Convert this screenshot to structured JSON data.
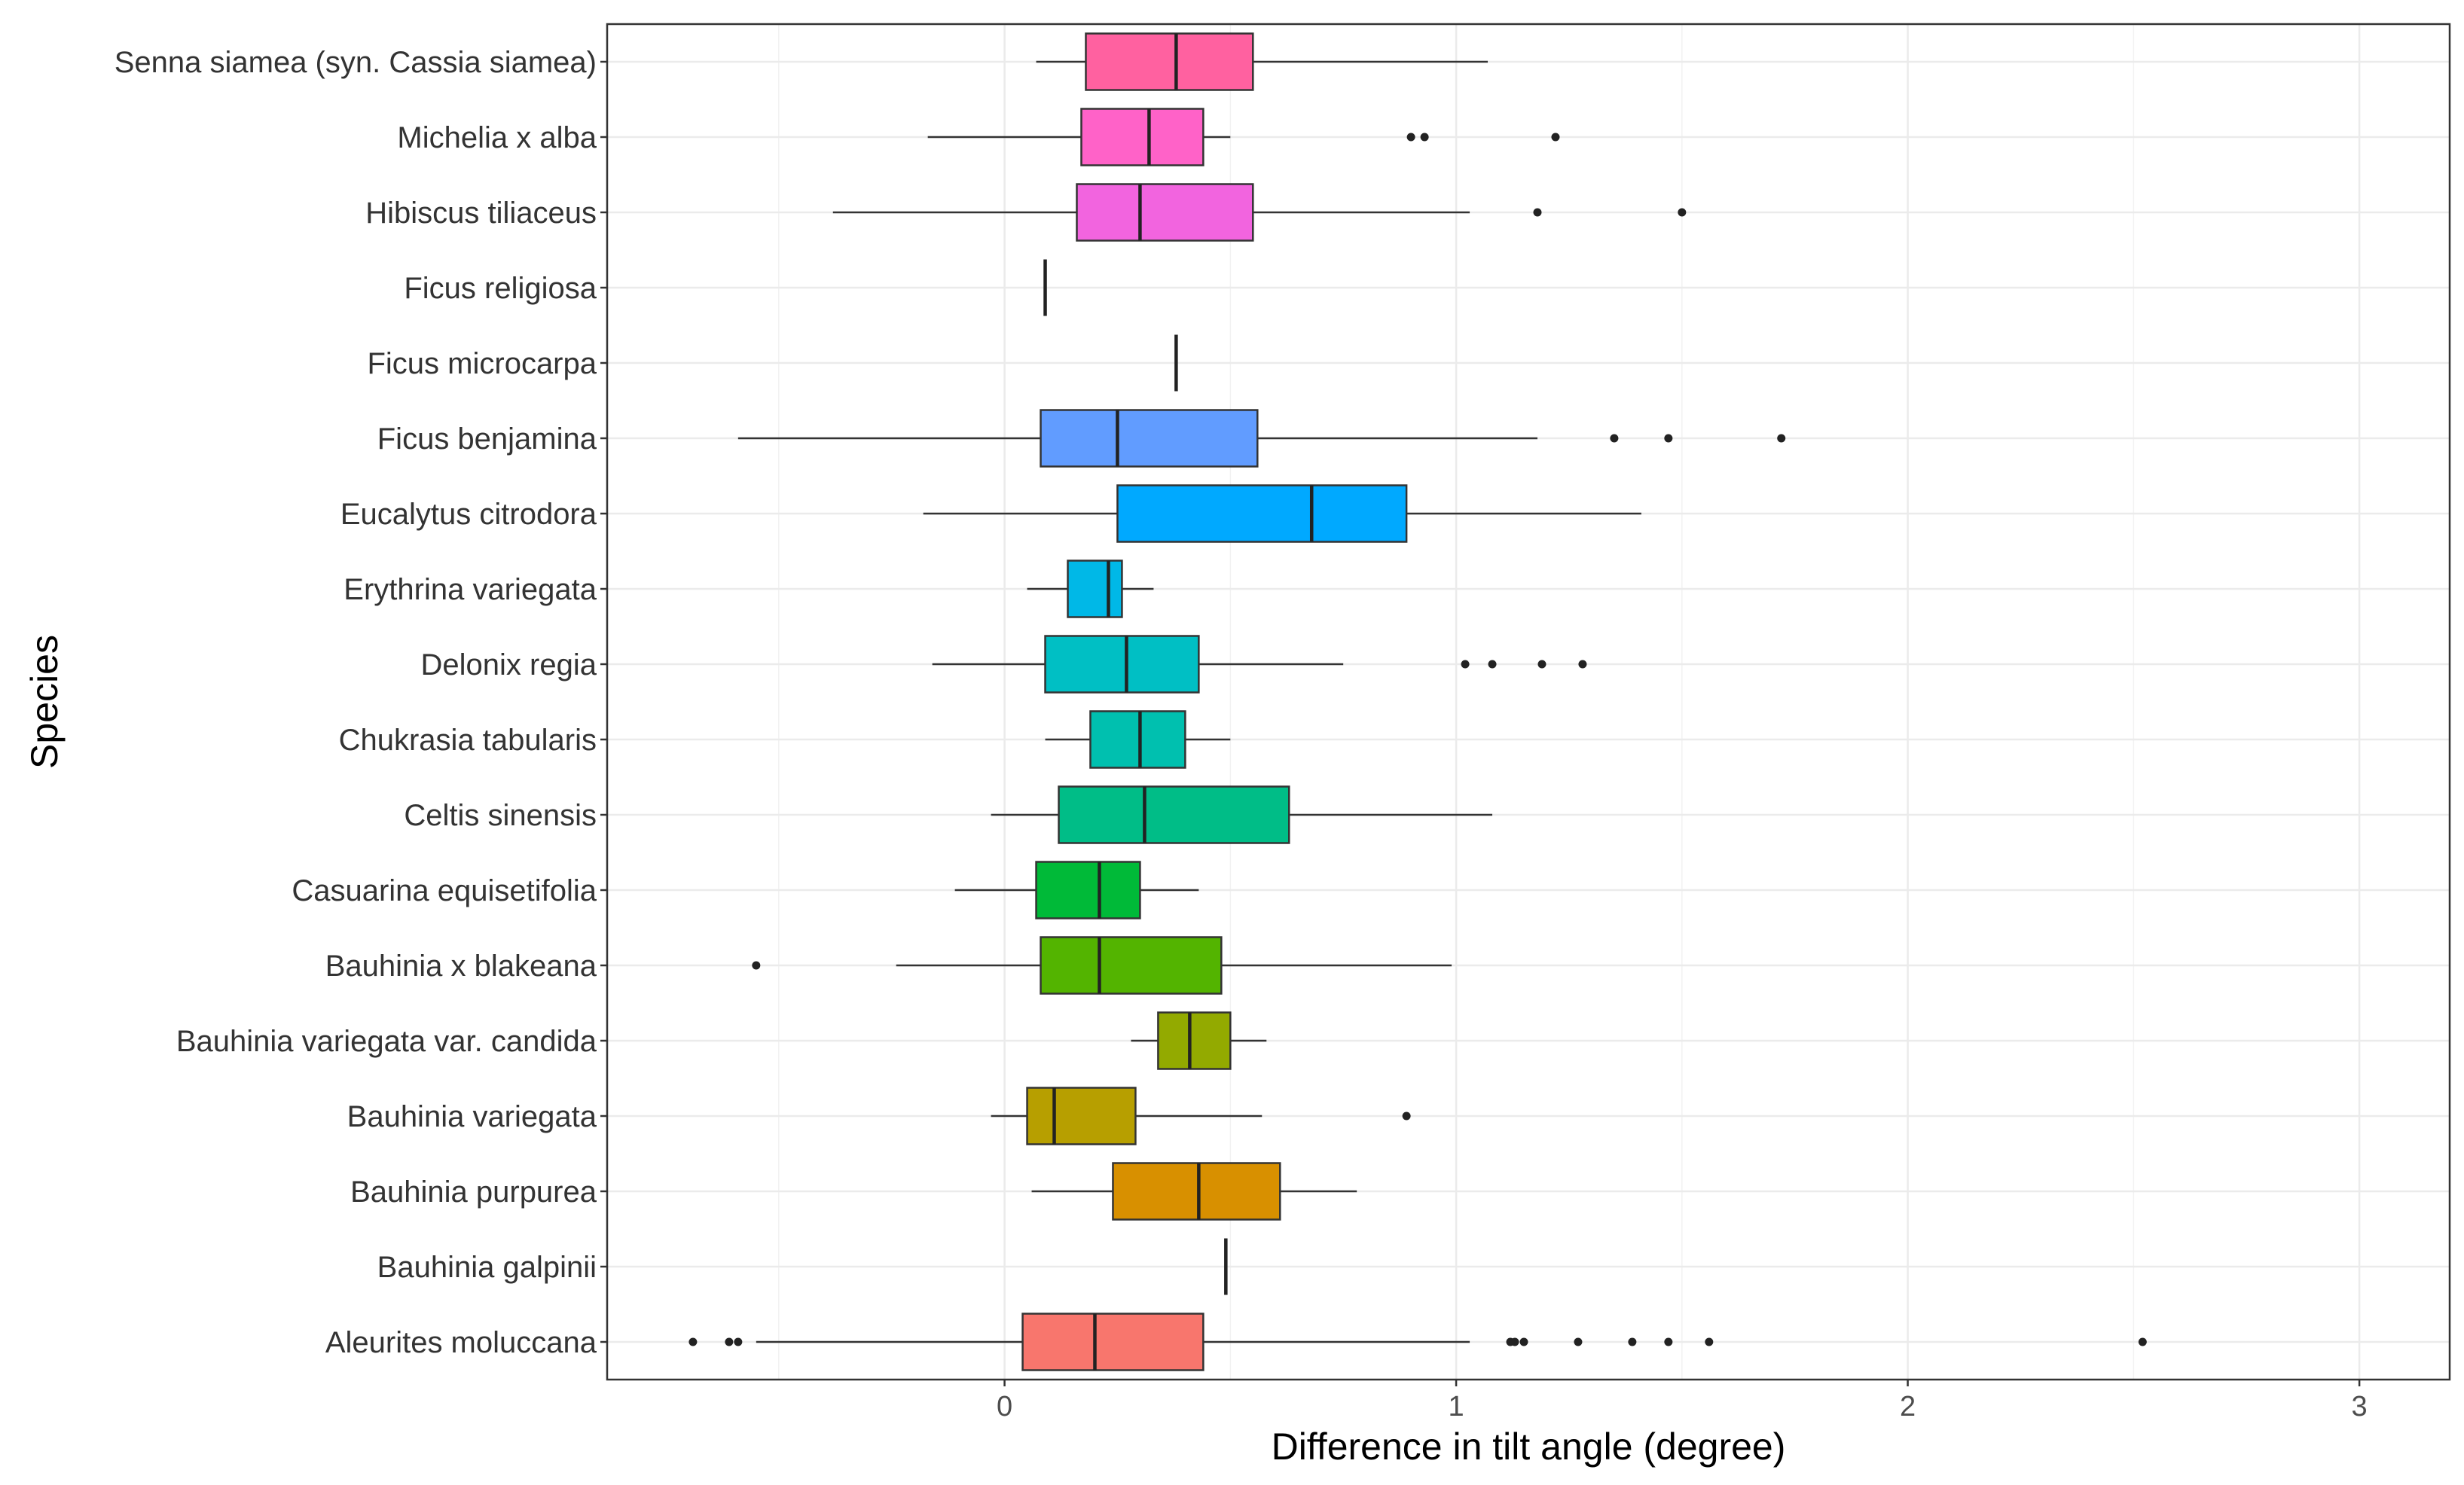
{
  "chart_data": {
    "type": "boxplot",
    "title": "",
    "xlabel": "Difference in tilt angle (degree)",
    "ylabel": "Species",
    "xlim": [
      -0.88,
      3.2
    ],
    "xticks": [
      0,
      1,
      2,
      3
    ],
    "grid": true,
    "legend": "none",
    "categories": [
      "Senna siamea (syn. Cassia siamea)",
      "Michelia x alba",
      "Hibiscus tiliaceus",
      "Ficus religiosa",
      "Ficus microcarpa",
      "Ficus benjamina",
      "Eucalytus citrodora",
      "Erythrina variegata",
      "Delonix regia",
      "Chukrasia tabularis",
      "Celtis sinensis",
      "Casuarina equisetifolia",
      "Bauhinia x blakeana",
      "Bauhinia variegata var. candida",
      "Bauhinia variegata",
      "Bauhinia purpurea",
      "Bauhinia galpinii",
      "Aleurites moluccana"
    ],
    "boxes": [
      {
        "species": "Senna siamea (syn. Cassia siamea)",
        "min": 0.07,
        "q1": 0.18,
        "median": 0.38,
        "q3": 0.55,
        "max": 1.07,
        "outliers": [],
        "color": "#FF61A0"
      },
      {
        "species": "Michelia x alba",
        "min": -0.17,
        "q1": 0.17,
        "median": 0.32,
        "q3": 0.44,
        "max": 0.5,
        "outliers": [
          0.9,
          0.93,
          1.22
        ],
        "color": "#FF62C8"
      },
      {
        "species": "Hibiscus tiliaceus",
        "min": -0.38,
        "q1": 0.16,
        "median": 0.3,
        "q3": 0.55,
        "max": 1.03,
        "outliers": [
          1.18,
          1.5
        ],
        "color": "#F264DF"
      },
      {
        "species": "Ficus religiosa",
        "min": 0.09,
        "q1": 0.09,
        "median": 0.09,
        "q3": 0.09,
        "max": 0.09,
        "outliers": [],
        "color": "#E76BF3"
      },
      {
        "species": "Ficus microcarpa",
        "min": 0.38,
        "q1": 0.38,
        "median": 0.38,
        "q3": 0.38,
        "max": 0.38,
        "outliers": [],
        "color": "#C280FF"
      },
      {
        "species": "Ficus benjamina",
        "min": -0.59,
        "q1": 0.08,
        "median": 0.25,
        "q3": 0.56,
        "max": 1.18,
        "outliers": [
          1.35,
          1.47,
          1.72
        ],
        "color": "#619CFF"
      },
      {
        "species": "Eucalytus citrodora",
        "min": -0.18,
        "q1": 0.25,
        "median": 0.68,
        "q3": 0.89,
        "max": 1.41,
        "outliers": [],
        "color": "#00A9FF"
      },
      {
        "species": "Erythrina variegata",
        "min": 0.05,
        "q1": 0.14,
        "median": 0.23,
        "q3": 0.26,
        "max": 0.33,
        "outliers": [],
        "color": "#00B8E7"
      },
      {
        "species": "Delonix regia",
        "min": -0.16,
        "q1": 0.09,
        "median": 0.27,
        "q3": 0.43,
        "max": 0.75,
        "outliers": [
          1.02,
          1.08,
          1.19,
          1.28
        ],
        "color": "#00BFC4"
      },
      {
        "species": "Chukrasia tabularis",
        "min": 0.09,
        "q1": 0.19,
        "median": 0.3,
        "q3": 0.4,
        "max": 0.5,
        "outliers": [],
        "color": "#00C0AF"
      },
      {
        "species": "Celtis sinensis",
        "min": -0.03,
        "q1": 0.12,
        "median": 0.31,
        "q3": 0.63,
        "max": 1.08,
        "outliers": [],
        "color": "#00BD87"
      },
      {
        "species": "Casuarina equisetifolia",
        "min": -0.11,
        "q1": 0.07,
        "median": 0.21,
        "q3": 0.3,
        "max": 0.43,
        "outliers": [],
        "color": "#00BA38"
      },
      {
        "species": "Bauhinia x blakeana",
        "min": -0.24,
        "q1": 0.08,
        "median": 0.21,
        "q3": 0.48,
        "max": 0.99,
        "outliers": [
          -0.55
        ],
        "color": "#53B400"
      },
      {
        "species": "Bauhinia variegata var. candida",
        "min": 0.28,
        "q1": 0.34,
        "median": 0.41,
        "q3": 0.5,
        "max": 0.58,
        "outliers": [],
        "color": "#93AA00"
      },
      {
        "species": "Bauhinia variegata",
        "min": -0.03,
        "q1": 0.05,
        "median": 0.11,
        "q3": 0.29,
        "max": 0.57,
        "outliers": [
          0.89
        ],
        "color": "#B79F00"
      },
      {
        "species": "Bauhinia purpurea",
        "min": 0.06,
        "q1": 0.24,
        "median": 0.43,
        "q3": 0.61,
        "max": 0.78,
        "outliers": [],
        "color": "#D89000"
      },
      {
        "species": "Bauhinia galpinii",
        "min": 0.49,
        "q1": 0.49,
        "median": 0.49,
        "q3": 0.49,
        "max": 0.49,
        "outliers": [],
        "color": "#E7861B"
      },
      {
        "species": "Aleurites moluccana",
        "min": -0.55,
        "q1": 0.04,
        "median": 0.2,
        "q3": 0.44,
        "max": 1.03,
        "outliers": [
          -0.69,
          -0.61,
          -0.59,
          1.12,
          1.13,
          1.15,
          1.27,
          1.39,
          1.47,
          1.56,
          2.52
        ],
        "color": "#F8766D"
      }
    ]
  }
}
